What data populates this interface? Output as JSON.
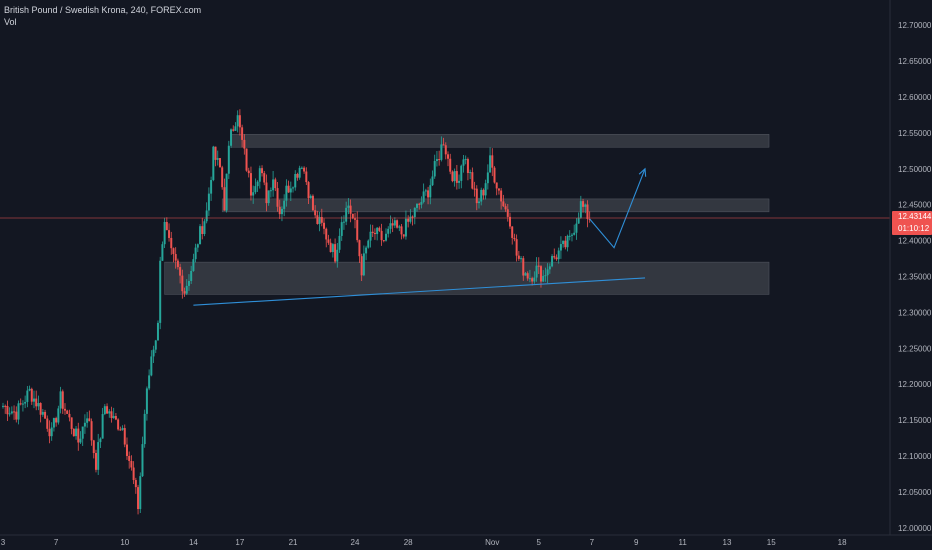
{
  "header": {
    "symbol_line": "British Pound / Swedish Krona, 240, FOREX.com",
    "indicator": "Vol"
  },
  "colors": {
    "background": "#131722",
    "up": "#26a69a",
    "down": "#ef5350",
    "zone_fill": "#3a3d45",
    "drawing": "#2f8fd8",
    "last_price_bg": "#ef5350"
  },
  "price_tag": {
    "price": "12.43144",
    "countdown": "01:10:12"
  },
  "chart_data": {
    "type": "candlestick",
    "title": "British Pound / Swedish Krona, 240, FOREX.com",
    "y_axis": {
      "range": [
        11.99,
        12.735
      ],
      "ticks": [
        "12.00000",
        "12.05000",
        "12.10000",
        "12.15000",
        "12.20000",
        "12.25000",
        "12.30000",
        "12.35000",
        "12.40000",
        "12.45000",
        "12.50000",
        "12.55000",
        "12.60000",
        "12.65000",
        "12.70000"
      ]
    },
    "x_axis": {
      "labels": [
        {
          "t": "3",
          "bar": 0
        },
        {
          "t": "7",
          "bar": 24
        },
        {
          "t": "10",
          "bar": 55
        },
        {
          "t": "14",
          "bar": 86
        },
        {
          "t": "17",
          "bar": 107
        },
        {
          "t": "21",
          "bar": 131
        },
        {
          "t": "24",
          "bar": 159
        },
        {
          "t": "28",
          "bar": 183
        },
        {
          "t": "Nov",
          "bar": 221
        },
        {
          "t": "5",
          "bar": 242
        },
        {
          "t": "7",
          "bar": 266
        },
        {
          "t": "9",
          "bar": 286
        },
        {
          "t": "11",
          "bar": 307
        },
        {
          "t": "13",
          "bar": 327
        },
        {
          "t": "15",
          "bar": 347
        },
        {
          "t": "18",
          "bar": 379
        }
      ]
    },
    "bar_count": 402,
    "price_path": [
      [
        0,
        12.17
      ],
      [
        6,
        12.16
      ],
      [
        12,
        12.19
      ],
      [
        18,
        12.16
      ],
      [
        22,
        12.13
      ],
      [
        26,
        12.18
      ],
      [
        30,
        12.15
      ],
      [
        34,
        12.12
      ],
      [
        38,
        12.16
      ],
      [
        42,
        12.09
      ],
      [
        46,
        12.17
      ],
      [
        50,
        12.15
      ],
      [
        54,
        12.14
      ],
      [
        58,
        12.08
      ],
      [
        61,
        12.03
      ],
      [
        64,
        12.16
      ],
      [
        67,
        12.24
      ],
      [
        70,
        12.28
      ],
      [
        71,
        12.38
      ],
      [
        73,
        12.42
      ],
      [
        76,
        12.38
      ],
      [
        79,
        12.36
      ],
      [
        82,
        12.33
      ],
      [
        86,
        12.37
      ],
      [
        88,
        12.4
      ],
      [
        92,
        12.44
      ],
      [
        95,
        12.52
      ],
      [
        98,
        12.5
      ],
      [
        100,
        12.45
      ],
      [
        103,
        12.56
      ],
      [
        106,
        12.57
      ],
      [
        109,
        12.52
      ],
      [
        112,
        12.47
      ],
      [
        116,
        12.5
      ],
      [
        119,
        12.46
      ],
      [
        122,
        12.49
      ],
      [
        125,
        12.44
      ],
      [
        128,
        12.47
      ],
      [
        132,
        12.49
      ],
      [
        135,
        12.51
      ],
      [
        138,
        12.47
      ],
      [
        141,
        12.43
      ],
      [
        144,
        12.42
      ],
      [
        147,
        12.4
      ],
      [
        150,
        12.38
      ],
      [
        153,
        12.43
      ],
      [
        156,
        12.45
      ],
      [
        159,
        12.42
      ],
      [
        162,
        12.36
      ],
      [
        165,
        12.4
      ],
      [
        168,
        12.41
      ],
      [
        172,
        12.4
      ],
      [
        176,
        12.42
      ],
      [
        180,
        12.41
      ],
      [
        184,
        12.43
      ],
      [
        188,
        12.45
      ],
      [
        192,
        12.47
      ],
      [
        196,
        12.51
      ],
      [
        199,
        12.54
      ],
      [
        202,
        12.5
      ],
      [
        205,
        12.48
      ],
      [
        208,
        12.52
      ],
      [
        211,
        12.49
      ],
      [
        214,
        12.45
      ],
      [
        217,
        12.47
      ],
      [
        220,
        12.51
      ],
      [
        223,
        12.48
      ],
      [
        226,
        12.45
      ],
      [
        229,
        12.43
      ],
      [
        232,
        12.38
      ],
      [
        235,
        12.36
      ],
      [
        238,
        12.35
      ],
      [
        241,
        12.36
      ],
      [
        244,
        12.35
      ],
      [
        247,
        12.37
      ],
      [
        250,
        12.38
      ],
      [
        253,
        12.39
      ],
      [
        256,
        12.4
      ],
      [
        259,
        12.43
      ],
      [
        261,
        12.45
      ],
      [
        263,
        12.44
      ],
      [
        265,
        12.43
      ]
    ],
    "zones": [
      {
        "name": "resistance-zone",
        "from_bar": 103,
        "to_bar": 346,
        "low": 12.53,
        "high": 12.548
      },
      {
        "name": "middle-zone",
        "from_bar": 99,
        "to_bar": 346,
        "low": 12.44,
        "high": 12.458
      },
      {
        "name": "support-zone",
        "from_bar": 73,
        "to_bar": 346,
        "low": 12.325,
        "high": 12.37
      }
    ],
    "trendline": {
      "from": [
        86,
        12.31
      ],
      "to": [
        290,
        12.348
      ]
    },
    "projection": [
      [
        265,
        12.43
      ],
      [
        276,
        12.39
      ],
      [
        290,
        12.5
      ]
    ],
    "last_price": 12.43144
  }
}
